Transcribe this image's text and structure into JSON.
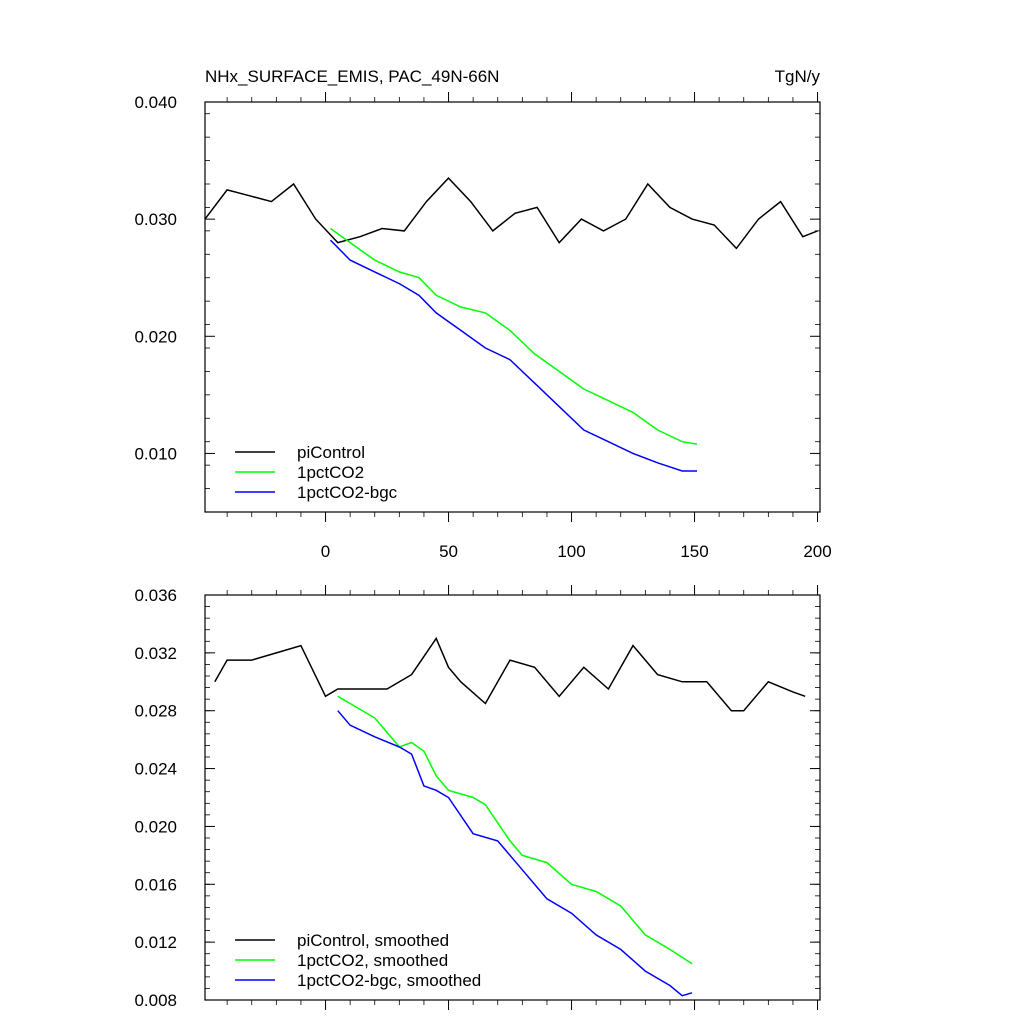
{
  "chart_data": [
    {
      "type": "line",
      "title": "NHx_SURFACE_EMIS, PAC_49N-66N",
      "units": "TgN/y",
      "xlabel": "",
      "ylabel": "",
      "xlim": [
        -49,
        201
      ],
      "ylim": [
        0.005,
        0.04
      ],
      "xticks": [
        0,
        50,
        100,
        150,
        200
      ],
      "xtick_labels": [
        "0",
        "50",
        "100",
        "150",
        "200"
      ],
      "yticks": [
        0.01,
        0.02,
        0.03,
        0.04
      ],
      "ytick_labels": [
        "0.010",
        "0.020",
        "0.030",
        "0.040"
      ],
      "legend_position": "bottom-left",
      "series": [
        {
          "name": "piControl",
          "color": "#000000",
          "x": [
            -49,
            -40,
            -31,
            -22,
            -13,
            -4,
            5,
            14,
            23,
            32,
            41,
            50,
            59,
            68,
            77,
            86,
            95,
            104,
            113,
            122,
            131,
            140,
            149,
            158,
            167,
            176,
            185,
            194,
            200
          ],
          "values": [
            0.03,
            0.0325,
            0.032,
            0.0315,
            0.033,
            0.03,
            0.028,
            0.0285,
            0.0292,
            0.029,
            0.0315,
            0.0335,
            0.0315,
            0.029,
            0.0305,
            0.031,
            0.028,
            0.03,
            0.029,
            0.03,
            0.033,
            0.031,
            0.03,
            0.0295,
            0.0275,
            0.03,
            0.0315,
            0.0285,
            0.029
          ]
        },
        {
          "name": "1pctCO2",
          "color": "#00ff00",
          "x": [
            2,
            10,
            20,
            30,
            38,
            45,
            55,
            65,
            75,
            85,
            95,
            105,
            115,
            125,
            135,
            145,
            151
          ],
          "values": [
            0.0292,
            0.028,
            0.0265,
            0.0255,
            0.025,
            0.0235,
            0.0225,
            0.022,
            0.0205,
            0.0185,
            0.017,
            0.0155,
            0.0145,
            0.0135,
            0.012,
            0.011,
            0.0108
          ]
        },
        {
          "name": "1pctCO2-bgc",
          "color": "#0000ff",
          "x": [
            2,
            10,
            20,
            30,
            38,
            45,
            55,
            65,
            75,
            85,
            95,
            105,
            115,
            125,
            135,
            145,
            151
          ],
          "values": [
            0.0282,
            0.0265,
            0.0255,
            0.0245,
            0.0235,
            0.022,
            0.0205,
            0.019,
            0.018,
            0.016,
            0.014,
            0.012,
            0.011,
            0.01,
            0.0092,
            0.0085,
            0.0085
          ]
        }
      ]
    },
    {
      "type": "line",
      "title": "",
      "xlabel": "",
      "ylabel": "",
      "xlim": [
        -49,
        201
      ],
      "ylim": [
        0.008,
        0.036
      ],
      "xticks": [
        0,
        50,
        100,
        150,
        200
      ],
      "yticks": [
        0.008,
        0.012,
        0.016,
        0.02,
        0.024,
        0.028,
        0.032,
        0.036
      ],
      "ytick_labels": [
        "0.008",
        "0.012",
        "0.016",
        "0.020",
        "0.024",
        "0.028",
        "0.032",
        "0.036"
      ],
      "legend_position": "bottom-left",
      "series": [
        {
          "name": "piControl, smoothed",
          "color": "#000000",
          "x": [
            -45,
            -40,
            -30,
            -20,
            -10,
            0,
            5,
            15,
            25,
            35,
            45,
            50,
            55,
            65,
            75,
            85,
            95,
            105,
            115,
            125,
            135,
            145,
            155,
            165,
            170,
            180,
            190,
            195
          ],
          "values": [
            0.03,
            0.0315,
            0.0315,
            0.032,
            0.0325,
            0.029,
            0.0295,
            0.0295,
            0.0295,
            0.0305,
            0.033,
            0.031,
            0.03,
            0.0285,
            0.0315,
            0.031,
            0.029,
            0.031,
            0.0295,
            0.0325,
            0.0305,
            0.03,
            0.03,
            0.028,
            0.028,
            0.03,
            0.0293,
            0.029
          ]
        },
        {
          "name": "1pctCO2, smoothed",
          "color": "#00ff00",
          "x": [
            5,
            10,
            20,
            30,
            35,
            40,
            45,
            50,
            60,
            65,
            75,
            80,
            90,
            100,
            110,
            120,
            130,
            140,
            149
          ],
          "values": [
            0.029,
            0.0285,
            0.0275,
            0.0255,
            0.0258,
            0.0252,
            0.0235,
            0.0225,
            0.022,
            0.0215,
            0.019,
            0.018,
            0.0175,
            0.016,
            0.0155,
            0.0145,
            0.0125,
            0.0115,
            0.0105
          ]
        },
        {
          "name": "1pctCO2-bgc, smoothed",
          "color": "#0000ff",
          "x": [
            5,
            10,
            20,
            30,
            35,
            40,
            45,
            50,
            60,
            70,
            80,
            90,
            100,
            110,
            120,
            130,
            140,
            145,
            149
          ],
          "values": [
            0.028,
            0.027,
            0.0262,
            0.0255,
            0.025,
            0.0228,
            0.0225,
            0.022,
            0.0195,
            0.019,
            0.017,
            0.015,
            0.014,
            0.0125,
            0.0115,
            0.01,
            0.009,
            0.0083,
            0.0085
          ]
        }
      ]
    }
  ]
}
